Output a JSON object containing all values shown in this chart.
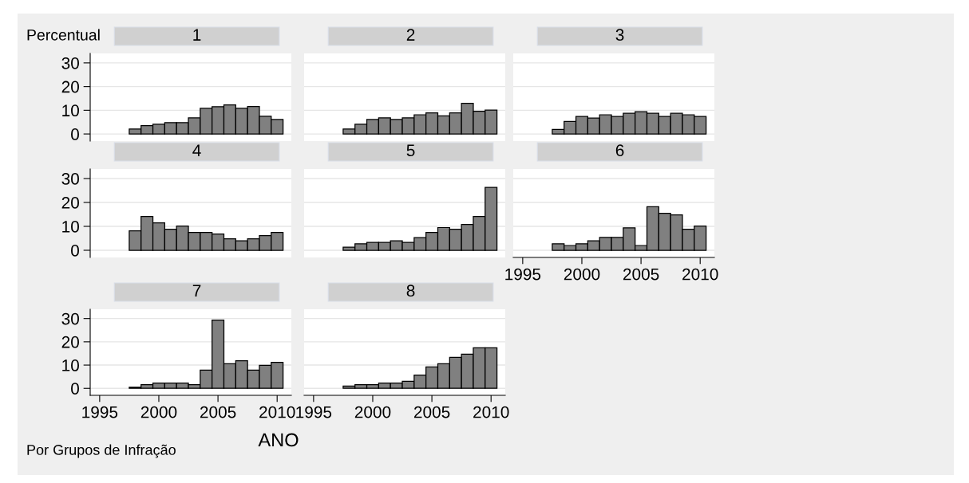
{
  "chart_data": [
    {
      "type": "histogram",
      "title": "1",
      "ylabel": "Percentual",
      "bins": [
        1997.5,
        1998.5,
        1999.5,
        2000.5,
        2001.5,
        2002.5,
        2003.5,
        2004.5,
        2005.5,
        2006.5,
        2007.5,
        2008.5,
        2009.5,
        2010.5
      ],
      "values": [
        2.1,
        3.5,
        4.1,
        4.8,
        4.8,
        6.8,
        10.8,
        11.5,
        12.3,
        10.8,
        11.6,
        7.5,
        6.1
      ],
      "color": "#808080",
      "xlim": [
        1994.2,
        2011.2
      ],
      "xticks": [
        1995,
        2000,
        2005,
        2010
      ],
      "ylim": [
        -3,
        34
      ],
      "yticks": [
        0,
        10,
        20,
        30
      ],
      "tick_labels": "y",
      "grid": "y"
    },
    {
      "type": "histogram",
      "title": "2",
      "bins": [
        1997.5,
        1998.5,
        1999.5,
        2000.5,
        2001.5,
        2002.5,
        2003.5,
        2004.5,
        2005.5,
        2006.5,
        2007.5,
        2008.5,
        2009.5,
        2010.5
      ],
      "values": [
        2.1,
        4.1,
        6.1,
        6.8,
        6.1,
        6.8,
        8.1,
        8.9,
        7.6,
        8.9,
        12.9,
        9.6,
        10.1
      ],
      "color": "#808080",
      "xlim": [
        1994.2,
        2011.2
      ],
      "xticks": [
        1995,
        2000,
        2005,
        2010
      ],
      "ylim": [
        -3,
        34
      ],
      "yticks": [
        0,
        10,
        20,
        30
      ],
      "tick_labels": false,
      "grid": "y"
    },
    {
      "type": "histogram",
      "title": "3",
      "bins": [
        1997.5,
        1998.5,
        1999.5,
        2000.5,
        2001.5,
        2002.5,
        2003.5,
        2004.5,
        2005.5,
        2006.5,
        2007.5,
        2008.5,
        2009.5,
        2010.5
      ],
      "values": [
        1.9,
        5.3,
        7.4,
        6.7,
        8.1,
        7.4,
        8.7,
        9.4,
        8.7,
        7.4,
        8.7,
        8.1,
        7.4
      ],
      "color": "#808080",
      "xlim": [
        1994.2,
        2011.2
      ],
      "xticks": [
        1995,
        2000,
        2005,
        2010
      ],
      "ylim": [
        -3,
        34
      ],
      "yticks": [
        0,
        10,
        20,
        30
      ],
      "tick_labels": false,
      "grid": "y"
    },
    {
      "type": "histogram",
      "title": "4",
      "bins": [
        1997.5,
        1998.5,
        1999.5,
        2000.5,
        2001.5,
        2002.5,
        2003.5,
        2004.5,
        2005.5,
        2006.5,
        2007.5,
        2008.5,
        2009.5,
        2010.5
      ],
      "values": [
        8.1,
        14.1,
        11.5,
        8.8,
        10.1,
        7.5,
        7.5,
        6.8,
        4.8,
        4.0,
        4.8,
        6.1,
        7.5
      ],
      "color": "#808080",
      "xlim": [
        1994.2,
        2011.2
      ],
      "xticks": [
        1995,
        2000,
        2005,
        2010
      ],
      "ylim": [
        -3,
        34
      ],
      "yticks": [
        0,
        10,
        20,
        30
      ],
      "tick_labels": "y",
      "grid": "y"
    },
    {
      "type": "histogram",
      "title": "5",
      "bins": [
        1997.5,
        1998.5,
        1999.5,
        2000.5,
        2001.5,
        2002.5,
        2003.5,
        2004.5,
        2005.5,
        2006.5,
        2007.5,
        2008.5,
        2009.5,
        2010.5
      ],
      "values": [
        1.3,
        2.7,
        3.3,
        3.3,
        4.0,
        3.3,
        5.3,
        7.5,
        9.5,
        8.8,
        10.8,
        14.1,
        26.3
      ],
      "color": "#808080",
      "xlim": [
        1994.2,
        2011.2
      ],
      "xticks": [
        1995,
        2000,
        2005,
        2010
      ],
      "ylim": [
        -3,
        34
      ],
      "yticks": [
        0,
        10,
        20,
        30
      ],
      "tick_labels": false,
      "grid": "y"
    },
    {
      "type": "histogram",
      "title": "6",
      "bins": [
        1997.5,
        1998.5,
        1999.5,
        2000.5,
        2001.5,
        2002.5,
        2003.5,
        2004.5,
        2005.5,
        2006.5,
        2007.5,
        2008.5,
        2009.5,
        2010.5
      ],
      "values": [
        2.7,
        2.0,
        2.7,
        4.0,
        5.4,
        5.4,
        9.4,
        2.0,
        18.2,
        15.5,
        14.8,
        8.8,
        10.1
      ],
      "color": "#808080",
      "xlim": [
        1994.2,
        2011.2
      ],
      "xticks": [
        1995,
        2000,
        2005,
        2010
      ],
      "ylim": [
        -3,
        34
      ],
      "yticks": [
        0,
        10,
        20,
        30
      ],
      "tick_labels": "x",
      "grid": "y"
    },
    {
      "type": "histogram",
      "title": "7",
      "annotations": [
        "Por Grupos de Infração"
      ],
      "bins": [
        1997.5,
        1998.5,
        1999.5,
        2000.5,
        2001.5,
        2002.5,
        2003.5,
        2004.5,
        2005.5,
        2006.5,
        2007.5,
        2008.5,
        2009.5,
        2010.5
      ],
      "values": [
        0.5,
        1.6,
        2.3,
        2.3,
        2.3,
        1.6,
        7.8,
        29.3,
        10.6,
        11.9,
        7.8,
        9.9,
        11.2
      ],
      "color": "#808080",
      "xlim": [
        1994.2,
        2011.2
      ],
      "xticks": [
        1995,
        2000,
        2005,
        2010
      ],
      "ylim": [
        -3,
        34
      ],
      "yticks": [
        0,
        10,
        20,
        30
      ],
      "grid": "y"
    },
    {
      "type": "histogram",
      "title": "8",
      "xlabel": "ANO",
      "bins": [
        1997.5,
        1998.5,
        1999.5,
        2000.5,
        2001.5,
        2002.5,
        2003.5,
        2004.5,
        2005.5,
        2006.5,
        2007.5,
        2008.5,
        2009.5,
        2010.5
      ],
      "values": [
        1.0,
        1.6,
        1.6,
        2.3,
        2.3,
        3.0,
        5.7,
        9.2,
        10.6,
        13.3,
        14.7,
        17.4,
        17.4
      ],
      "color": "#808080",
      "xlim": [
        1994.2,
        2011.2
      ],
      "xticks": [
        1995,
        2000,
        2005,
        2010
      ],
      "ylim": [
        -3,
        34
      ],
      "yticks": [
        0,
        10,
        20,
        30
      ],
      "tick_labels": "x",
      "grid": "y"
    }
  ]
}
